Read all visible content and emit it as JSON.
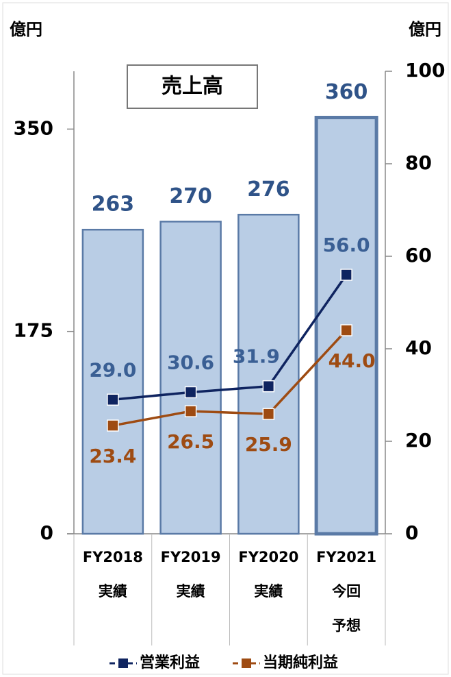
{
  "chart_data": {
    "type": "bar-line",
    "y_label": "億円",
    "y2_label": "億円",
    "categories": [
      [
        "FY2018",
        "実績"
      ],
      [
        "FY2019",
        "実績"
      ],
      [
        "FY2020",
        "実績"
      ],
      [
        "FY2021",
        "今回",
        "予想"
      ]
    ],
    "bar_series": {
      "name": "売上高",
      "color": "#b9cde5",
      "stroke": "#5a7aa6",
      "label_color": "#2f5388",
      "values": [
        263,
        270,
        276,
        360
      ]
    },
    "series": [
      {
        "name": "営業利益",
        "color": "#0f2460",
        "label_color": "#3a5f94",
        "axis": "y2",
        "values": [
          29.0,
          30.6,
          31.9,
          56.0
        ],
        "value_labels": [
          "29.0",
          "30.6",
          "31.9",
          "56.0"
        ]
      },
      {
        "name": "当期純利益",
        "color": "#9e4b12",
        "label_color": "#9e4b12",
        "axis": "y2",
        "values": [
          23.4,
          26.5,
          25.9,
          44.0
        ],
        "value_labels": [
          "23.4",
          "26.5",
          "25.9",
          "44.0"
        ]
      }
    ],
    "ylim": [
      0,
      400
    ],
    "yticks": [
      0,
      175,
      350
    ],
    "y2lim": [
      0,
      100
    ],
    "y2ticks": [
      0,
      20,
      40,
      60,
      80,
      100
    ]
  }
}
